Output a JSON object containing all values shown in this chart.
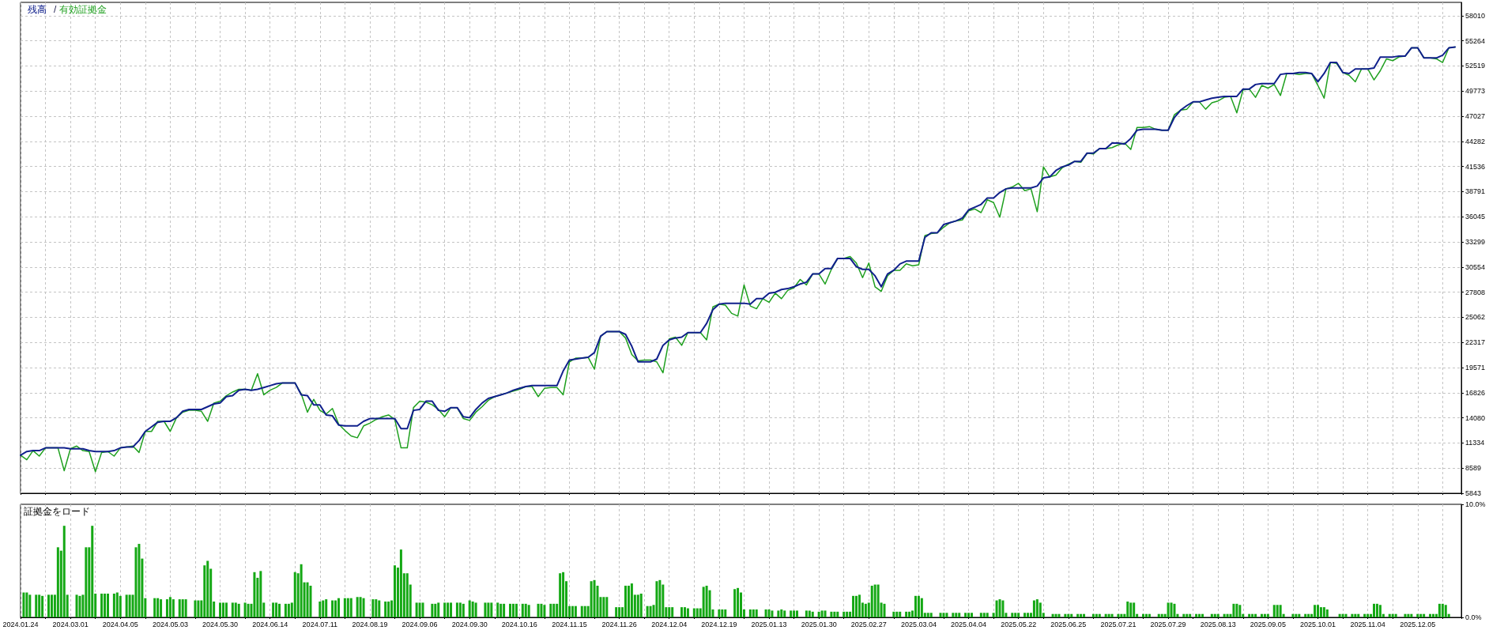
{
  "chart_data": [
    {
      "type": "line",
      "legend": "top left",
      "marker": "none",
      "grid": true,
      "tick_labels": "y",
      "annotations": [
        "/"
      ],
      "categories": [
        "2024.01.24",
        null,
        null,
        null,
        null,
        null,
        null,
        null,
        "2024.03.01",
        null,
        null,
        null,
        null,
        null,
        null,
        null,
        "2024.04.05",
        null,
        null,
        null,
        null,
        null,
        null,
        null,
        "2024.05.03",
        null,
        null,
        null,
        null,
        null,
        null,
        null,
        "2024.05.30",
        null,
        null,
        null,
        null,
        null,
        null,
        null,
        "2024.06.14",
        null,
        null,
        null,
        null,
        null,
        null,
        null,
        "2024.07.11",
        null,
        null,
        null,
        null,
        null,
        null,
        null,
        "2024.08.19",
        null,
        null,
        null,
        null,
        null,
        null,
        null,
        "2024.09.06",
        null,
        null,
        null,
        null,
        null,
        null,
        null,
        "2024.09.30",
        null,
        null,
        null,
        null,
        null,
        null,
        null,
        "2024.10.16",
        null,
        null,
        null,
        null,
        null,
        null,
        null,
        "2024.11.15",
        null,
        null,
        null,
        null,
        null,
        null,
        null,
        "2024.11.26",
        null,
        null,
        null,
        null,
        null,
        null,
        null,
        "2024.12.04",
        null,
        null,
        null,
        null,
        null,
        null,
        null,
        "2024.12.19",
        null,
        null,
        null,
        null,
        null,
        null,
        null,
        "2025.01.13",
        null,
        null,
        null,
        null,
        null,
        null,
        null,
        "2025.01.30",
        null,
        null,
        null,
        null,
        null,
        null,
        null,
        "2025.02.27",
        null,
        null,
        null,
        null,
        null,
        null,
        null,
        "2025.03.04",
        null,
        null,
        null,
        null,
        null,
        null,
        null,
        "2025.04.04",
        null,
        null,
        null,
        null,
        null,
        null,
        null,
        "2025.05.22",
        null,
        null,
        null,
        null,
        null,
        null,
        null,
        "2025.06.25",
        null,
        null,
        null,
        null,
        null,
        null,
        null,
        "2025.07.21",
        null,
        null,
        null,
        null,
        null,
        null,
        null,
        "2025.07.29",
        null,
        null,
        null,
        null,
        null,
        null,
        null,
        "2025.08.13",
        null,
        null,
        null,
        null,
        null,
        null,
        null,
        "2025.09.05",
        null,
        null,
        null,
        null,
        null,
        null,
        null,
        "2025.10.01",
        null,
        null,
        null,
        null,
        null,
        null,
        null,
        "2025.11.04",
        null,
        null,
        null,
        null,
        null,
        null,
        null,
        "2025.12.05",
        null,
        null,
        null,
        null,
        null,
        null,
        null
      ],
      "ylim": [
        5843,
        59470
      ],
      "yticks": [
        5843,
        8589,
        11334,
        14080,
        16826,
        19571,
        22317,
        25062,
        27808,
        30554,
        33299,
        36045,
        38791,
        41536,
        44282,
        47027,
        49773,
        52519,
        55264,
        58010
      ],
      "series": [
        {
          "name": "残高",
          "color": "#10208c",
          "values": [
            10000,
            10400,
            10500,
            10500,
            10800,
            10800,
            10800,
            10800,
            10700,
            10700,
            10700,
            10500,
            10400,
            10400,
            10400,
            10500,
            10800,
            10900,
            10900,
            11600,
            12600,
            13100,
            13600,
            13700,
            13700,
            14100,
            14800,
            15000,
            15000,
            15000,
            15300,
            15600,
            15700,
            16400,
            16500,
            17100,
            17200,
            17100,
            17200,
            17400,
            17600,
            17800,
            17900,
            17900,
            17900,
            16600,
            16500,
            15500,
            15500,
            14400,
            14300,
            13300,
            13200,
            13200,
            13200,
            13700,
            14000,
            14000,
            14000,
            14000,
            14000,
            12900,
            12900,
            14900,
            15000,
            15900,
            15900,
            14900,
            14800,
            15200,
            15200,
            14200,
            14100,
            15000,
            15700,
            16200,
            16400,
            16600,
            16800,
            17100,
            17300,
            17500,
            17600,
            17600,
            17600,
            17600,
            17600,
            19200,
            20400,
            20500,
            20600,
            20700,
            21200,
            23000,
            23500,
            23500,
            23500,
            23200,
            21900,
            20200,
            20200,
            20200,
            20500,
            22000,
            22600,
            22800,
            22900,
            23400,
            23400,
            23400,
            24400,
            25900,
            26500,
            26600,
            26600,
            26600,
            26600,
            26500,
            27100,
            27100,
            27700,
            27800,
            28100,
            28200,
            28400,
            28700,
            28900,
            29800,
            29800,
            30400,
            30400,
            31500,
            31500,
            31500,
            30600,
            30300,
            30300,
            29600,
            28400,
            29800,
            30200,
            30900,
            31200,
            31200,
            31200,
            33800,
            34300,
            34300,
            35200,
            35400,
            35600,
            35900,
            36800,
            37100,
            37400,
            38100,
            38100,
            38700,
            39100,
            39200,
            39200,
            39200,
            39200,
            39400,
            40300,
            40400,
            41100,
            41500,
            41700,
            42100,
            42100,
            43000,
            43000,
            43500,
            43500,
            44100,
            44100,
            44000,
            44600,
            45500,
            45600,
            45600,
            45600,
            45500,
            45500,
            46900,
            47700,
            48200,
            48600,
            48600,
            48800,
            49000,
            49100,
            49200,
            49200,
            49200,
            50000,
            50000,
            50500,
            50600,
            50600,
            50600,
            51600,
            51700,
            51700,
            51800,
            51800,
            51700,
            50800,
            51700,
            52900,
            52900,
            51800,
            51700,
            52200,
            52200,
            52200,
            52300,
            53500,
            53500,
            53500,
            53600,
            53600,
            54500,
            54500,
            53400,
            53400,
            53400,
            53700,
            54500,
            54600,
            null
          ]
        },
        {
          "name": "有効証拠金",
          "color": "#1fa01f",
          "values": [
            10000,
            9500,
            10500,
            9900,
            10800,
            10800,
            10800,
            8300,
            10700,
            11000,
            10500,
            10400,
            8200,
            10300,
            10400,
            9900,
            10800,
            10900,
            11000,
            10300,
            12600,
            12600,
            13700,
            13700,
            12600,
            14100,
            14700,
            14900,
            14900,
            14800,
            13700,
            15700,
            15900,
            16500,
            16900,
            17200,
            17200,
            17100,
            18900,
            16600,
            17100,
            17400,
            17900,
            17900,
            17900,
            16700,
            14700,
            16100,
            14900,
            14500,
            15100,
            13400,
            12700,
            12100,
            11900,
            13200,
            13500,
            13900,
            14200,
            14400,
            13900,
            10800,
            10800,
            15200,
            15900,
            15800,
            15500,
            15000,
            14200,
            15200,
            15200,
            14000,
            13800,
            14700,
            15300,
            16000,
            16400,
            16600,
            16800,
            17000,
            17200,
            17500,
            17500,
            16400,
            17300,
            17400,
            17400,
            16600,
            20200,
            20600,
            20600,
            20700,
            19400,
            23000,
            23500,
            23500,
            23500,
            22800,
            21000,
            20300,
            20400,
            20400,
            20200,
            19000,
            22700,
            22900,
            22000,
            23400,
            23400,
            23400,
            22600,
            26200,
            26500,
            26400,
            25500,
            25200,
            28600,
            26300,
            26000,
            27100,
            26700,
            27700,
            27100,
            28000,
            28300,
            29200,
            28600,
            29800,
            29800,
            28700,
            30300,
            31500,
            31500,
            31700,
            31000,
            29400,
            31000,
            28400,
            27900,
            29600,
            30200,
            30200,
            30900,
            30700,
            30800,
            34000,
            34200,
            34300,
            34900,
            35400,
            35600,
            35700,
            36700,
            36900,
            36500,
            37900,
            37600,
            36000,
            39100,
            39300,
            39700,
            38900,
            39100,
            36600,
            41500,
            40400,
            40600,
            41400,
            41800,
            42100,
            42000,
            43000,
            42900,
            43500,
            43500,
            43600,
            43900,
            44100,
            43400,
            45800,
            45800,
            45900,
            45600,
            45500,
            45500,
            47200,
            47700,
            47800,
            48600,
            48600,
            47800,
            48500,
            48700,
            49100,
            49200,
            47400,
            49900,
            50000,
            49100,
            50400,
            50100,
            50500,
            49300,
            51700,
            51700,
            51600,
            51700,
            51700,
            50400,
            49000,
            52900,
            52800,
            51800,
            51500,
            50800,
            52200,
            52200,
            51000,
            52000,
            53300,
            53100,
            53500,
            53600,
            54500,
            54500,
            53400,
            53400,
            53300,
            52900,
            54500,
            54600,
            null
          ]
        }
      ]
    },
    {
      "type": "bar",
      "title": "証拠金をロード",
      "color": "#14a814",
      "grid": "x",
      "categories": [
        "2024.01.24",
        null,
        null,
        null,
        null,
        null,
        null,
        null,
        null,
        null,
        null,
        null,
        null,
        null,
        null,
        null,
        "2024.03.01",
        null,
        null,
        null,
        null,
        null,
        null,
        null,
        null,
        null,
        null,
        null,
        null,
        null,
        null,
        null,
        "2024.04.05",
        null,
        null,
        null,
        null,
        null,
        null,
        null,
        null,
        null,
        null,
        null,
        null,
        null,
        null,
        null,
        "2024.05.03",
        null,
        null,
        null,
        null,
        null,
        null,
        null,
        null,
        null,
        null,
        null,
        null,
        null,
        null,
        null,
        "2024.05.30",
        null,
        null,
        null,
        null,
        null,
        null,
        null,
        null,
        null,
        null,
        null,
        null,
        null,
        null,
        null,
        "2024.06.14",
        null,
        null,
        null,
        null,
        null,
        null,
        null,
        null,
        null,
        null,
        null,
        null,
        null,
        null,
        null,
        "2024.07.11",
        null,
        null,
        null,
        null,
        null,
        null,
        null,
        null,
        null,
        null,
        null,
        null,
        null,
        null,
        null,
        "2024.08.19",
        null,
        null,
        null,
        null,
        null,
        null,
        null,
        null,
        null,
        null,
        null,
        null,
        null,
        null,
        null,
        "2024.09.06",
        null,
        null,
        null,
        null,
        null,
        null,
        null,
        null,
        null,
        null,
        null,
        null,
        null,
        null,
        null,
        "2024.09.30",
        null,
        null,
        null,
        null,
        null,
        null,
        null,
        null,
        null,
        null,
        null,
        null,
        null,
        null,
        null,
        "2024.10.16",
        null,
        null,
        null,
        null,
        null,
        null,
        null,
        null,
        null,
        null,
        null,
        null,
        null,
        null,
        null,
        "2024.11.15",
        null,
        null,
        null,
        null,
        null,
        null,
        null,
        null,
        null,
        null,
        null,
        null,
        null,
        null,
        null,
        "2024.11.26",
        null,
        null,
        null,
        null,
        null,
        null,
        null,
        null,
        null,
        null,
        null,
        null,
        null,
        null,
        null,
        "2024.12.04",
        null,
        null,
        null,
        null,
        null,
        null,
        null,
        null,
        null,
        null,
        null,
        null,
        null,
        null,
        null,
        "2024.12.19",
        null,
        null,
        null,
        null,
        null,
        null,
        null,
        null,
        null,
        null,
        null,
        null,
        null,
        null,
        null,
        "2025.01.13",
        null,
        null,
        null,
        null,
        null,
        null,
        null,
        null,
        null,
        null,
        null,
        null,
        null,
        null,
        null,
        "2025.01.30",
        null,
        null,
        null,
        null,
        null,
        null,
        null,
        null,
        null,
        null,
        null,
        null,
        null,
        null,
        null,
        "2025.02.27",
        null,
        null,
        null,
        null,
        null,
        null,
        null,
        null,
        null,
        null,
        null,
        null,
        null,
        null,
        null,
        "2025.03.04",
        null,
        null,
        null,
        null,
        null,
        null,
        null,
        null,
        null,
        null,
        null,
        null,
        null,
        null,
        null,
        "2025.04.04",
        null,
        null,
        null,
        null,
        null,
        null,
        null,
        null,
        null,
        null,
        null,
        null,
        null,
        null,
        null,
        "2025.05.22",
        null,
        null,
        null,
        null,
        null,
        null,
        null,
        null,
        null,
        null,
        null,
        null,
        null,
        null,
        null,
        "2025.06.25",
        null,
        null,
        null,
        null,
        null,
        null,
        null,
        null,
        null,
        null,
        null,
        null,
        null,
        null,
        null,
        "2025.07.21",
        null,
        null,
        null,
        null,
        null,
        null,
        null,
        null,
        null,
        null,
        null,
        null,
        null,
        null,
        null,
        "2025.07.29",
        null,
        null,
        null,
        null,
        null,
        null,
        null,
        null,
        null,
        null,
        null,
        null,
        null,
        null,
        null,
        "2025.08.13",
        null,
        null,
        null,
        null,
        null,
        null,
        null,
        null,
        null,
        null,
        null,
        null,
        null,
        null,
        null,
        "2025.09.05",
        null,
        null,
        null,
        null,
        null,
        null,
        null,
        null,
        null,
        null,
        null,
        null,
        null,
        null,
        null,
        "2025.10.01",
        null,
        null,
        null,
        null,
        null,
        null,
        null,
        null,
        null,
        null,
        null,
        null,
        null,
        null,
        null,
        "2025.11.04",
        null,
        null,
        null,
        null,
        null,
        null,
        null,
        null,
        null,
        null,
        null,
        null,
        null,
        null,
        null,
        "2025.12.05",
        null,
        null,
        null,
        null,
        null,
        null,
        null,
        null,
        null,
        null,
        null,
        null,
        null,
        null
      ],
      "ylim": [
        0,
        10
      ],
      "yticks": [
        {
          "value": 0,
          "label": "0.0%"
        },
        {
          "value": 10,
          "label": "10.0%"
        }
      ],
      "values": [
        null,
        2.2,
        2.2,
        2.0,
        null,
        2.0,
        2.0,
        1.9,
        null,
        2.0,
        2.0,
        2.0,
        6.2,
        5.9,
        8.1,
        2.0,
        null,
        null,
        2.0,
        1.9,
        2.0,
        6.2,
        6.2,
        8.1,
        2.1,
        null,
        2.1,
        2.1,
        2.1,
        null,
        2.1,
        2.2,
        1.9,
        null,
        2.0,
        2.0,
        2.0,
        6.2,
        6.5,
        5.2,
        1.7,
        null,
        null,
        1.7,
        1.7,
        1.6,
        null,
        1.6,
        1.8,
        1.6,
        null,
        1.6,
        1.6,
        1.6,
        null,
        null,
        1.5,
        1.5,
        1.5,
        4.6,
        5.0,
        4.3,
        1.4,
        null,
        1.3,
        1.3,
        1.3,
        null,
        1.3,
        1.3,
        1.2,
        null,
        1.3,
        1.2,
        1.2,
        4.0,
        3.5,
        4.1,
        1.3,
        null,
        null,
        1.3,
        1.3,
        1.2,
        null,
        1.2,
        1.2,
        1.3,
        4.0,
        3.9,
        4.7,
        3.1,
        3.1,
        2.8,
        null,
        null,
        1.4,
        1.5,
        1.6,
        null,
        1.5,
        1.5,
        1.7,
        null,
        1.7,
        1.7,
        1.7,
        null,
        1.8,
        1.8,
        1.7,
        null,
        null,
        1.6,
        1.6,
        1.5,
        null,
        1.4,
        1.4,
        1.5,
        4.6,
        4.4,
        6.0,
        3.9,
        3.9,
        2.9,
        null,
        1.3,
        1.3,
        1.3,
        null,
        null,
        1.2,
        1.2,
        1.3,
        null,
        1.3,
        1.3,
        1.3,
        null,
        1.3,
        1.3,
        1.2,
        null,
        1.5,
        1.4,
        1.3,
        null,
        null,
        1.3,
        1.3,
        1.3,
        null,
        1.3,
        1.2,
        1.2,
        null,
        1.2,
        1.2,
        1.2,
        null,
        1.2,
        1.2,
        1.1,
        null,
        null,
        1.2,
        1.2,
        1.1,
        null,
        1.2,
        1.2,
        1.2,
        3.9,
        4.0,
        3.2,
        1.0,
        1.0,
        1.0,
        null,
        1.0,
        1.0,
        1.0,
        3.2,
        3.3,
        2.8,
        1.8,
        1.8,
        1.8,
        null,
        null,
        0.9,
        0.9,
        0.9,
        2.8,
        2.8,
        3.0,
        2.0,
        2.0,
        2.1,
        null,
        1.0,
        1.0,
        1.1,
        3.2,
        3.3,
        2.9,
        0.9,
        0.9,
        0.9,
        null,
        null,
        0.9,
        0.9,
        0.8,
        null,
        0.8,
        0.8,
        0.8,
        2.7,
        2.8,
        2.4,
        0.7,
        null,
        0.7,
        0.7,
        0.7,
        null,
        null,
        2.5,
        2.6,
        2.2,
        0.7,
        null,
        0.7,
        0.7,
        0.7,
        null,
        null,
        0.7,
        0.7,
        0.6,
        null,
        0.6,
        0.7,
        0.6,
        null,
        0.6,
        0.6,
        0.6,
        null,
        null,
        0.6,
        0.6,
        0.5,
        null,
        0.5,
        0.6,
        0.6,
        null,
        0.5,
        0.5,
        0.5,
        null,
        0.5,
        0.5,
        0.5,
        1.9,
        1.9,
        2.0,
        1.3,
        1.2,
        1.3,
        2.8,
        2.9,
        2.9,
        1.3,
        1.2,
        null,
        null,
        0.5,
        0.5,
        0.5,
        null,
        0.5,
        0.5,
        0.6,
        1.9,
        1.9,
        1.7,
        0.4,
        0.4,
        0.4,
        null,
        null,
        0.4,
        0.4,
        0.4,
        null,
        0.4,
        0.4,
        0.4,
        null,
        0.4,
        0.4,
        0.4,
        null,
        null,
        0.4,
        0.4,
        0.4,
        null,
        0.4,
        1.5,
        1.6,
        1.5,
        0.4,
        null,
        0.4,
        0.4,
        0.4,
        null,
        0.4,
        0.4,
        0.4,
        1.5,
        1.6,
        1.3,
        0.4,
        null,
        null,
        0.3,
        0.3,
        0.3,
        null,
        0.3,
        0.3,
        0.3,
        null,
        0.3,
        0.3,
        0.3,
        null,
        null,
        0.3,
        0.3,
        0.3,
        null,
        0.3,
        0.3,
        0.3,
        null,
        0.3,
        0.3,
        0.3,
        1.4,
        1.3,
        1.3,
        0.3,
        null,
        0.3,
        0.3,
        0.3,
        null,
        null,
        0.3,
        0.3,
        0.3,
        1.3,
        1.3,
        1.2,
        0.3,
        null,
        0.3,
        0.3,
        0.3,
        null,
        0.3,
        0.3,
        0.3,
        null,
        null,
        0.3,
        0.3,
        0.3,
        null,
        0.3,
        0.3,
        0.3,
        1.2,
        1.2,
        1.1,
        0.3,
        null,
        0.3,
        0.3,
        0.3,
        null,
        0.3,
        0.3,
        0.3,
        null,
        1.1,
        1.1,
        1.1,
        0.3,
        null,
        null,
        0.3,
        0.3,
        0.3,
        null,
        0.3,
        0.3,
        0.3,
        1.1,
        1.1,
        0.9,
        0.9,
        0.7,
        null,
        null,
        null,
        0.3,
        0.3,
        0.3,
        null,
        0.3,
        0.3,
        0.3,
        null,
        0.3,
        0.3,
        0.3,
        1.2,
        1.2,
        1.1,
        0.3,
        null,
        0.3,
        0.3,
        0.3,
        null,
        null,
        0.3,
        0.3,
        0.3,
        null,
        0.3,
        0.3,
        0.3,
        null,
        0.3,
        0.3,
        0.3,
        1.2,
        1.2,
        1.1,
        0.3,
        null,
        null,
        null,
        null
      ]
    }
  ]
}
